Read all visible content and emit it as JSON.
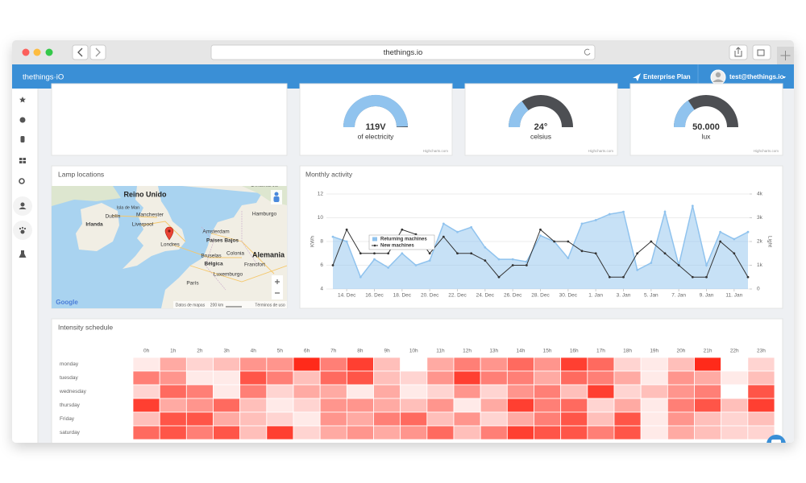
{
  "browser": {
    "url": "thethings.io"
  },
  "header": {
    "logo": "thethings·iO",
    "plan": "Enterprise Plan",
    "user": "test@thethings.io"
  },
  "map": {
    "title": "Lamp locations",
    "labels": [
      "Reino Unido",
      "Irlanda",
      "Isla de Man",
      "Dublín",
      "Manchester",
      "Liverpool",
      "Londres",
      "Amsterdam",
      "Países Bajos",
      "Bruselas",
      "Bélgica",
      "Colonia",
      "Luxemburgo",
      "Francfort",
      "Alemania",
      "París",
      "Hamburgo",
      "Dinamarca"
    ],
    "logo": "Google",
    "attribution": "Datos de mapas",
    "scale": "200 km",
    "terms": "Términos de uso"
  },
  "chart_data": [
    {
      "type": "gauge",
      "value": 119,
      "value_label": "119V",
      "unit": "of electricity",
      "ylim": [
        0,
        120
      ],
      "color": "#90c3ee",
      "track_color": "#4d4f53",
      "credits": "Highcharts.com"
    },
    {
      "type": "gauge",
      "value": 24,
      "value_label": "24°",
      "unit": "celsius",
      "ylim": [
        0,
        80
      ],
      "color": "#90c3ee",
      "track_color": "#4d4f53",
      "credits": "Highcharts.com"
    },
    {
      "type": "gauge",
      "value": 50000,
      "value_label": "50.000",
      "unit": "lux",
      "ylim": [
        0,
        160000
      ],
      "color": "#90c3ee",
      "track_color": "#4d4f53",
      "credits": "Highcharts.com"
    },
    {
      "type": "line",
      "title": "Monthly activity",
      "categories": [
        null,
        "14. Dec",
        null,
        "16. Dec",
        null,
        "18. Dec",
        null,
        "20. Dec",
        null,
        "22. Dec",
        null,
        "24. Dec",
        null,
        "26. Dec",
        null,
        "28. Dec",
        null,
        "30. Dec",
        null,
        "1. Jan",
        null,
        "3. Jan",
        null,
        "5. Jan",
        null,
        "7. Jan",
        null,
        "9. Jan",
        null,
        "11. Jan",
        null
      ],
      "series": [
        {
          "name": "Returning machines",
          "type": "area",
          "color": "#90c3ee",
          "values": [
            8.4,
            8.0,
            5.0,
            6.5,
            5.8,
            7.0,
            6.0,
            6.4,
            9.5,
            8.8,
            9.2,
            7.5,
            6.5,
            6.5,
            6.3,
            8.5,
            8.0,
            6.6,
            9.5,
            9.8,
            10.3,
            10.5,
            5.6,
            6.2,
            10.5,
            6.0,
            11.0,
            6.0,
            8.8,
            8.2,
            8.8
          ]
        },
        {
          "name": "New machines",
          "type": "line",
          "color": "#333333",
          "axis": "y2",
          "values": [
            1000,
            2500,
            1500,
            1500,
            1500,
            2500,
            2300,
            1500,
            2200,
            1500,
            1500,
            1200,
            500,
            1000,
            1000,
            2500,
            2000,
            2000,
            1600,
            1500,
            500,
            500,
            1500,
            2000,
            1500,
            1000,
            500,
            500,
            2000,
            1500,
            500
          ]
        }
      ],
      "ylabel": "KWh",
      "y2label": "Light",
      "ylim": [
        4,
        12
      ],
      "yticks": [
        4,
        6,
        8,
        10,
        12
      ],
      "y2lim": [
        0,
        4000
      ],
      "y2ticks": [
        0,
        {
          "value": 1000,
          "label": "1k"
        },
        {
          "value": 2000,
          "label": "2k"
        },
        {
          "value": 3000,
          "label": "3k"
        },
        {
          "value": 4000,
          "label": "4k"
        }
      ],
      "grid": true,
      "legend": "center-left"
    },
    {
      "type": "heatmap",
      "title": "Intensity schedule",
      "categories": [
        "0h",
        "1h",
        "2h",
        "3h",
        "4h",
        "5h",
        "6h",
        "7h",
        "8h",
        "9h",
        "10h",
        "11h",
        "12h",
        "13h",
        "14h",
        "15h",
        "16h",
        "17h",
        "18h",
        "19h",
        "20h",
        "21h",
        "22h",
        "23h"
      ],
      "rows": [
        "monday",
        "tuesday",
        "wednesday",
        "thursday",
        "Friday",
        "saturday"
      ],
      "values": [
        [
          1,
          4,
          2,
          3,
          5,
          5,
          10,
          6,
          9,
          3,
          0,
          4,
          6,
          5,
          7,
          5,
          9,
          7,
          2,
          1,
          3,
          10,
          0,
          2
        ],
        [
          6,
          5,
          1,
          1,
          8,
          6,
          3,
          7,
          8,
          3,
          2,
          5,
          9,
          6,
          6,
          4,
          7,
          6,
          4,
          1,
          5,
          4,
          1,
          3
        ],
        [
          2,
          7,
          6,
          1,
          6,
          2,
          4,
          4,
          1,
          4,
          1,
          2,
          5,
          2,
          5,
          6,
          3,
          9,
          2,
          3,
          5,
          6,
          0,
          8
        ],
        [
          9,
          4,
          5,
          7,
          3,
          1,
          2,
          5,
          5,
          4,
          3,
          5,
          1,
          4,
          9,
          6,
          7,
          2,
          4,
          1,
          6,
          8,
          3,
          9
        ],
        [
          3,
          8,
          8,
          4,
          3,
          2,
          1,
          5,
          4,
          6,
          7,
          3,
          5,
          2,
          4,
          6,
          8,
          3,
          8,
          1,
          5,
          3,
          2,
          3
        ],
        [
          7,
          8,
          6,
          8,
          3,
          9,
          2,
          4,
          5,
          4,
          5,
          7,
          3,
          6,
          9,
          8,
          8,
          6,
          8,
          1,
          4,
          3,
          2,
          2
        ]
      ],
      "clim": [
        0,
        10
      ],
      "colors": [
        "#ffffff",
        "#ff2a1a"
      ]
    }
  ]
}
